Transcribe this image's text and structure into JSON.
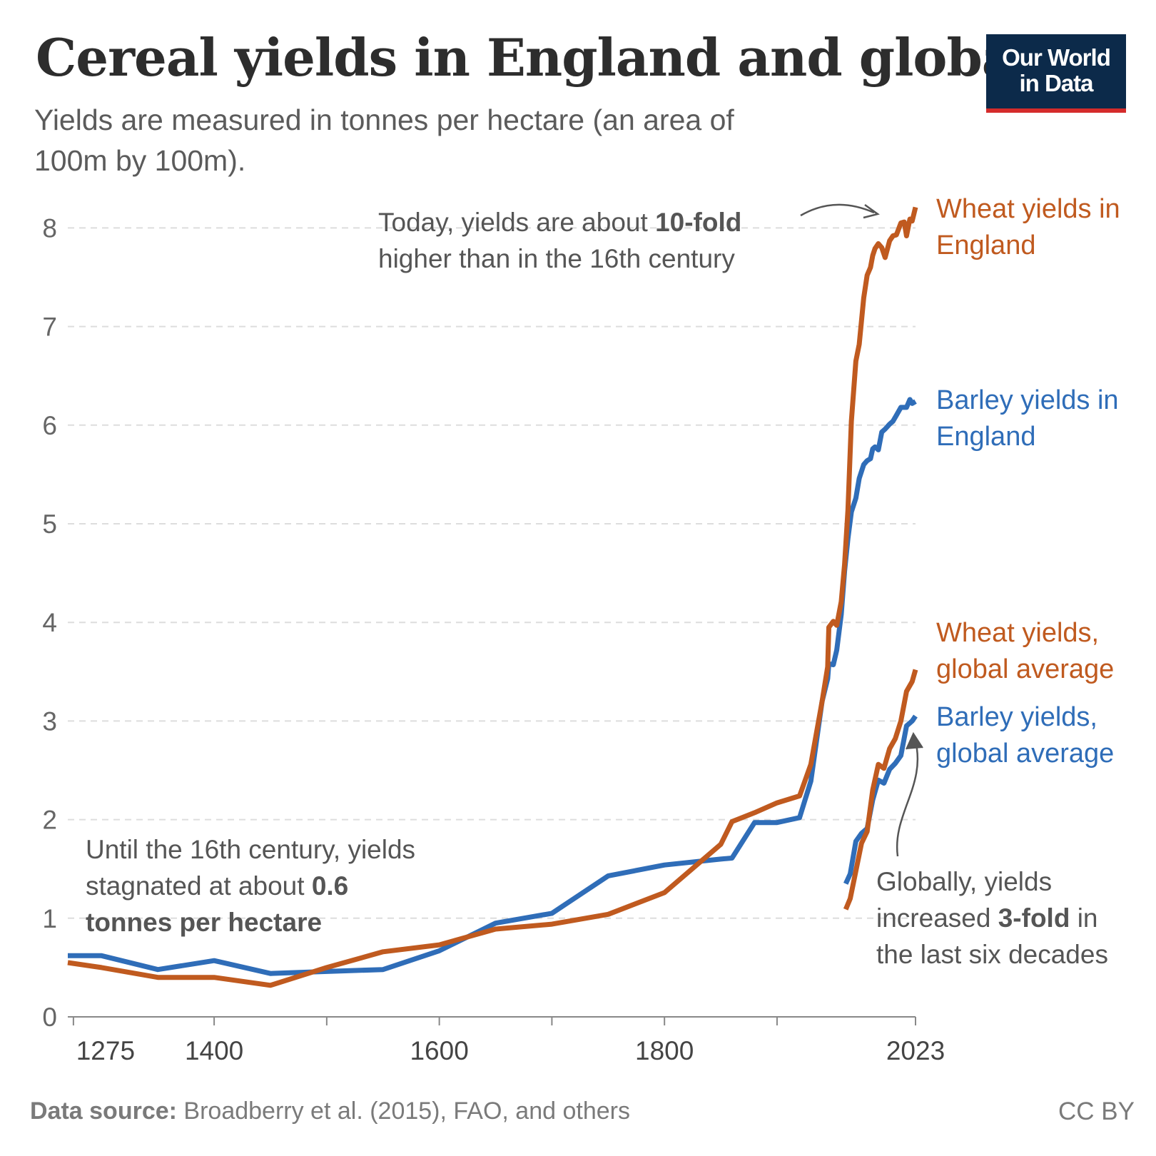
{
  "title": "Cereal yields in England and globally",
  "subtitle": "Yields are measured in tonnes per hectare (an area of 100m by 100m).",
  "logo": {
    "line1": "Our World",
    "line2": "in Data"
  },
  "footer": {
    "source_label": "Data source:",
    "source_text": " Broadberry et al. (2015), FAO, and others"
  },
  "license": "CC BY",
  "annotations": {
    "today": {
      "pre": "Today, yields are about ",
      "bold": "10-fold",
      "post": " higher than in the 16th century"
    },
    "until": {
      "pre": "Until the 16th century, yields stagnated at about ",
      "bold": "0.6 tonnes per hectare"
    },
    "global": {
      "pre": "Globally, yields increased ",
      "bold": "3-fold",
      "post": " in the last six decades"
    }
  },
  "chart_data": {
    "type": "line",
    "title": "Cereal yields in England and globally",
    "xlabel": "",
    "ylabel": "",
    "xlim": [
      1270,
      2023
    ],
    "ylim": [
      0,
      8.2
    ],
    "grid": "horizontal dashed",
    "x_ticks": [
      1275,
      1400,
      1600,
      1800,
      2023
    ],
    "y_ticks": [
      0,
      1,
      2,
      3,
      4,
      5,
      6,
      7,
      8
    ],
    "series": [
      {
        "name": "Wheat yields in England",
        "color": "#c05a1f",
        "x": [
          1270,
          1300,
          1350,
          1400,
          1450,
          1500,
          1550,
          1600,
          1650,
          1700,
          1750,
          1800,
          1850,
          1860,
          1880,
          1900,
          1920,
          1930,
          1940,
          1945,
          1946,
          1950,
          1953,
          1957,
          1960,
          1963,
          1966,
          1970,
          1973,
          1977,
          1980,
          1983,
          1985,
          1987,
          1990,
          1993,
          1996,
          2000,
          2003,
          2006,
          2010,
          2013,
          2015,
          2018,
          2020,
          2023
        ],
        "y": [
          0.55,
          0.5,
          0.4,
          0.4,
          0.32,
          0.5,
          0.66,
          0.73,
          0.89,
          0.94,
          1.04,
          1.26,
          1.75,
          1.98,
          2.07,
          2.17,
          2.24,
          2.56,
          3.2,
          3.55,
          3.95,
          4.01,
          3.97,
          4.21,
          4.59,
          5.14,
          6.04,
          6.65,
          6.82,
          7.29,
          7.52,
          7.6,
          7.72,
          7.79,
          7.84,
          7.8,
          7.7,
          7.87,
          7.92,
          7.93,
          8.05,
          8.06,
          7.92,
          8.09,
          8.07,
          8.21
        ]
      },
      {
        "name": "Barley yields in England",
        "color": "#2f6db8",
        "x": [
          1270,
          1300,
          1350,
          1400,
          1450,
          1500,
          1550,
          1600,
          1650,
          1700,
          1750,
          1800,
          1850,
          1860,
          1880,
          1900,
          1920,
          1930,
          1940,
          1945,
          1946,
          1950,
          1953,
          1957,
          1960,
          1963,
          1966,
          1970,
          1973,
          1977,
          1980,
          1983,
          1985,
          1987,
          1990,
          1993,
          1996,
          2000,
          2003,
          2006,
          2010,
          2013,
          2015,
          2018,
          2020,
          2023
        ],
        "y": [
          0.62,
          0.62,
          0.48,
          0.57,
          0.44,
          0.46,
          0.48,
          0.67,
          0.95,
          1.05,
          1.43,
          1.54,
          1.6,
          1.61,
          1.97,
          1.97,
          2.02,
          2.39,
          3.2,
          3.43,
          3.58,
          3.57,
          3.72,
          4.08,
          4.52,
          4.85,
          5.12,
          5.26,
          5.46,
          5.6,
          5.64,
          5.66,
          5.76,
          5.78,
          5.75,
          5.93,
          5.96,
          6.01,
          6.04,
          6.1,
          6.18,
          6.18,
          6.18,
          6.26,
          6.22,
          6.24
        ]
      },
      {
        "name": "Wheat yields, global average",
        "color": "#c05a1f",
        "x": [
          1961,
          1965,
          1970,
          1975,
          1980,
          1985,
          1990,
          1995,
          2000,
          2005,
          2010,
          2015,
          2020,
          2023
        ],
        "y": [
          1.09,
          1.2,
          1.48,
          1.76,
          1.88,
          2.3,
          2.56,
          2.52,
          2.72,
          2.82,
          3.0,
          3.3,
          3.4,
          3.52
        ]
      },
      {
        "name": "Barley yields, global average",
        "color": "#2f6db8",
        "x": [
          1961,
          1965,
          1970,
          1975,
          1980,
          1985,
          1990,
          1995,
          2000,
          2005,
          2010,
          2015,
          2020,
          2023
        ],
        "y": [
          1.35,
          1.45,
          1.78,
          1.86,
          1.91,
          2.2,
          2.4,
          2.37,
          2.51,
          2.57,
          2.65,
          2.95,
          3.0,
          3.05
        ]
      }
    ]
  }
}
